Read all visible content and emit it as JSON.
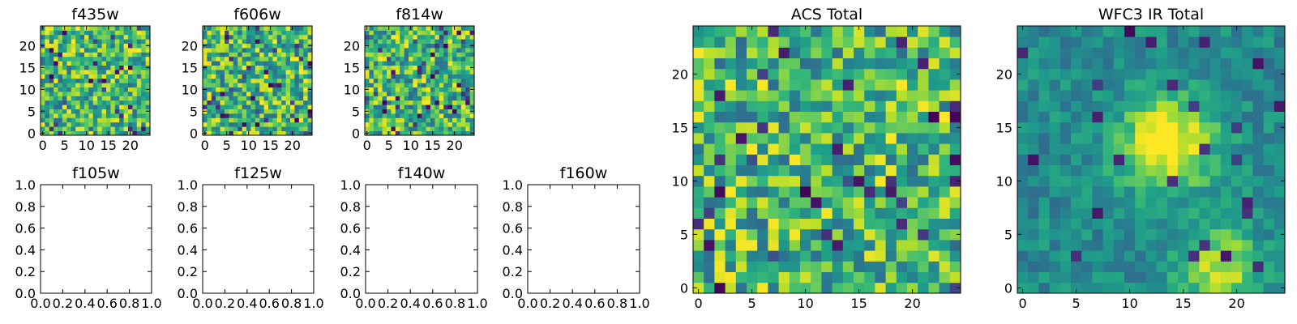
{
  "chart_data": [
    {
      "type": "heatmap",
      "title": "f435w",
      "xticks": [
        "0",
        "5",
        "10",
        "15",
        "20"
      ],
      "yticks": [
        "0",
        "5",
        "10",
        "15",
        "20"
      ],
      "grid_size": [
        25,
        25
      ],
      "xlim": [
        -0.5,
        24.5
      ],
      "ylim": [
        -0.5,
        24.5
      ],
      "colormap": "viridis",
      "colorbar": false,
      "note_values": "per-pixel values unreadable; field rendered as noise"
    },
    {
      "type": "heatmap",
      "title": "f606w",
      "xticks": [
        "0",
        "5",
        "10",
        "15",
        "20"
      ],
      "yticks": [
        "0",
        "5",
        "10",
        "15",
        "20"
      ],
      "grid_size": [
        25,
        25
      ],
      "xlim": [
        -0.5,
        24.5
      ],
      "ylim": [
        -0.5,
        24.5
      ],
      "colormap": "viridis",
      "colorbar": false
    },
    {
      "type": "heatmap",
      "title": "f814w",
      "xticks": [
        "0",
        "5",
        "10",
        "15",
        "20"
      ],
      "yticks": [
        "0",
        "5",
        "10",
        "15",
        "20"
      ],
      "grid_size": [
        25,
        25
      ],
      "xlim": [
        -0.5,
        24.5
      ],
      "ylim": [
        -0.5,
        24.5
      ],
      "colormap": "viridis",
      "colorbar": false
    },
    {
      "type": "empty",
      "title": "f105w",
      "xticks": [
        "0.0",
        "0.2",
        "0.4",
        "0.6",
        "0.8",
        "1.0"
      ],
      "yticks": [
        "0.0",
        "0.2",
        "0.4",
        "0.6",
        "0.8",
        "1.0"
      ],
      "xlim": [
        0,
        1
      ],
      "ylim": [
        0,
        1
      ]
    },
    {
      "type": "empty",
      "title": "f125w",
      "xticks": [
        "0.0",
        "0.2",
        "0.4",
        "0.6",
        "0.8",
        "1.0"
      ],
      "yticks": [
        "0.0",
        "0.2",
        "0.4",
        "0.6",
        "0.8",
        "1.0"
      ],
      "xlim": [
        0,
        1
      ],
      "ylim": [
        0,
        1
      ]
    },
    {
      "type": "empty",
      "title": "f140w",
      "xticks": [
        "0.0",
        "0.2",
        "0.4",
        "0.6",
        "0.8",
        "1.0"
      ],
      "yticks": [
        "0.0",
        "0.2",
        "0.4",
        "0.6",
        "0.8",
        "1.0"
      ],
      "xlim": [
        0,
        1
      ],
      "ylim": [
        0,
        1
      ]
    },
    {
      "type": "empty",
      "title": "f160w",
      "xticks": [
        "0.0",
        "0.2",
        "0.4",
        "0.6",
        "0.8",
        "1.0"
      ],
      "yticks": [
        "0.0",
        "0.2",
        "0.4",
        "0.6",
        "0.8",
        "1.0"
      ],
      "xlim": [
        0,
        1
      ],
      "ylim": [
        0,
        1
      ]
    },
    {
      "type": "heatmap",
      "title": "ACS Total",
      "xticks": [
        "0",
        "5",
        "10",
        "15",
        "20"
      ],
      "yticks": [
        "0",
        "5",
        "10",
        "15",
        "20"
      ],
      "grid_size": [
        25,
        25
      ],
      "xlim": [
        -0.5,
        24.5
      ],
      "ylim": [
        -0.5,
        24.5
      ],
      "colormap": "viridis",
      "colorbar": false
    },
    {
      "type": "heatmap",
      "title": "WFC3 IR Total",
      "xticks": [
        "0",
        "5",
        "10",
        "15",
        "20"
      ],
      "yticks": [
        "0",
        "5",
        "10",
        "15",
        "20"
      ],
      "grid_size": [
        25,
        25
      ],
      "xlim": [
        -0.5,
        24.5
      ],
      "ylim": [
        -0.5,
        24.5
      ],
      "colormap": "viridis",
      "colorbar": false,
      "bright_features": [
        {
          "x": 13.5,
          "y": 13.5,
          "sigma": 3.0,
          "amp": 0.6
        },
        {
          "x": 18.5,
          "y": 2,
          "sigma": 2.5,
          "amp": 0.45
        }
      ]
    }
  ]
}
